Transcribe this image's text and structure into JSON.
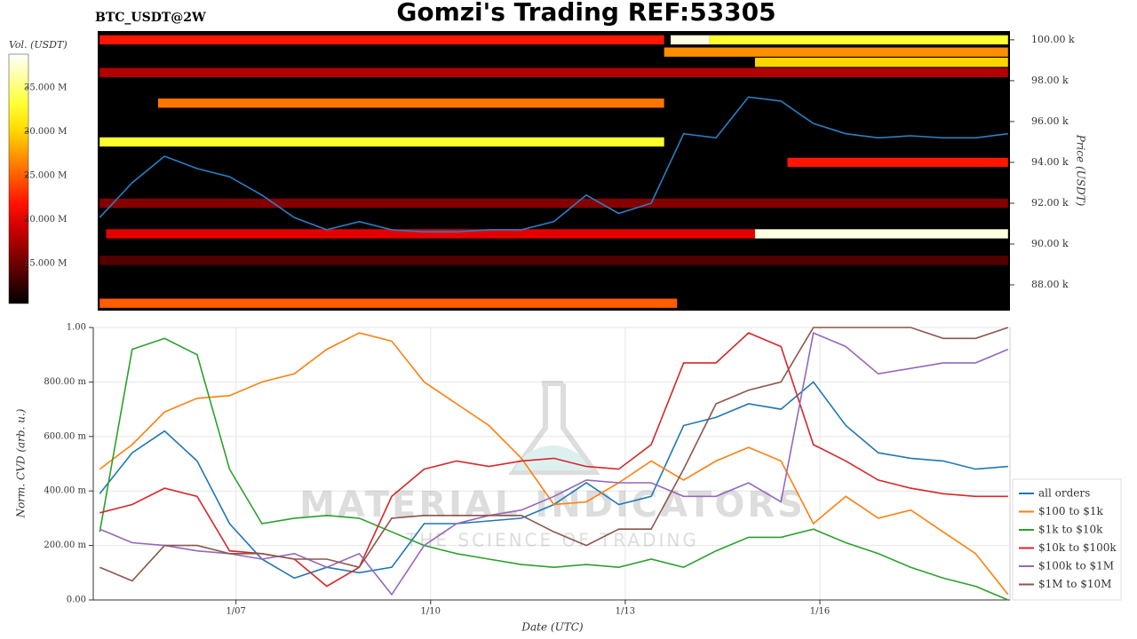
{
  "chart_data": [
    {
      "type": "heatmap",
      "title": "Gomzi's Trading REF:53305",
      "subtitle": "BTC_USDT@2W",
      "y_label": "Price (USDT)",
      "colorbar_label": "Vol. (USDT)",
      "colormap": "hot",
      "xlim": [
        4.87,
        18.93
      ],
      "ylim": [
        86740,
        100430
      ],
      "yticks": [
        {
          "value": 88000,
          "label": "88.00 k"
        },
        {
          "value": 90000,
          "label": "90.00 k"
        },
        {
          "value": 92000,
          "label": "92.00 k"
        },
        {
          "value": 94000,
          "label": "94.00 k"
        },
        {
          "value": 96000,
          "label": "96.00 k"
        },
        {
          "value": 98000,
          "label": "98.00 k"
        },
        {
          "value": 100000,
          "label": "100.00 k"
        }
      ],
      "colorbar_lim": [
        10450000,
        38840000
      ],
      "colorbar_ticks": [
        {
          "value": 15000000,
          "label": "15.000 M"
        },
        {
          "value": 20000000,
          "label": "20.000 M"
        },
        {
          "value": 25000000,
          "label": "25.000 M"
        },
        {
          "value": 30000000,
          "label": "30.000 M"
        },
        {
          "value": 35000000,
          "label": "35.000 M"
        }
      ],
      "bands": [
        {
          "price": 100000,
          "start": 4.9,
          "end": 13.6,
          "volume": 22000000
        },
        {
          "price": 100000,
          "start": 13.7,
          "end": 14.3,
          "volume": 38000000
        },
        {
          "price": 100000,
          "start": 14.3,
          "end": 18.9,
          "volume": 33000000
        },
        {
          "price": 99400,
          "start": 13.6,
          "end": 18.9,
          "volume": 27000000
        },
        {
          "price": 98900,
          "start": 15.0,
          "end": 18.9,
          "volume": 30000000
        },
        {
          "price": 98400,
          "start": 4.9,
          "end": 18.9,
          "volume": 18000000
        },
        {
          "price": 96900,
          "start": 5.8,
          "end": 13.6,
          "volume": 26000000
        },
        {
          "price": 95000,
          "start": 4.9,
          "end": 13.6,
          "volume": 33000000
        },
        {
          "price": 94000,
          "start": 15.5,
          "end": 18.9,
          "volume": 22000000
        },
        {
          "price": 92000,
          "start": 4.9,
          "end": 18.9,
          "volume": 16000000
        },
        {
          "price": 90500,
          "start": 5.0,
          "end": 15.0,
          "volume": 20000000
        },
        {
          "price": 90500,
          "start": 15.0,
          "end": 18.9,
          "volume": 38000000
        },
        {
          "price": 89200,
          "start": 4.9,
          "end": 18.9,
          "volume": 14000000
        },
        {
          "price": 87100,
          "start": 4.9,
          "end": 13.8,
          "volume": 25000000
        }
      ],
      "x": [
        4.9,
        5.4,
        5.9,
        6.4,
        6.9,
        7.4,
        7.9,
        8.4,
        8.9,
        9.4,
        9.9,
        10.4,
        10.9,
        11.4,
        11.9,
        12.4,
        12.9,
        13.4,
        13.9,
        14.4,
        14.9,
        15.4,
        15.9,
        16.4,
        16.9,
        17.4,
        17.9,
        18.4,
        18.9
      ],
      "line": {
        "color": "#2a7fc4",
        "values": [
          91300,
          93000,
          94300,
          93700,
          93300,
          92400,
          91300,
          90700,
          91100,
          90700,
          90600,
          90600,
          90700,
          90700,
          91100,
          92400,
          91500,
          92000,
          95400,
          95200,
          97200,
          97000,
          95900,
          95400,
          95200,
          95300,
          95200,
          95200,
          95400
        ]
      }
    },
    {
      "type": "line",
      "x_label": "Date (UTC)",
      "y_label": "Norm. CVD (arb. u.)",
      "grid": true,
      "legend": "lower right",
      "xlim": [
        4.8,
        18.93
      ],
      "ylim": [
        0,
        1
      ],
      "xticks": [
        {
          "value": 7,
          "label": "1/07"
        },
        {
          "value": 10,
          "label": "1/10"
        },
        {
          "value": 13,
          "label": "1/13"
        },
        {
          "value": 16,
          "label": "1/16"
        }
      ],
      "yticks": [
        {
          "value": 0,
          "label": "0.00"
        },
        {
          "value": 0.2,
          "label": "200.00 m"
        },
        {
          "value": 0.4,
          "label": "400.00 m"
        },
        {
          "value": 0.6,
          "label": "600.00 m"
        },
        {
          "value": 0.8,
          "label": "800.00 m"
        },
        {
          "value": 1,
          "label": "1.00"
        }
      ],
      "x": [
        4.9,
        5.4,
        5.9,
        6.4,
        6.9,
        7.4,
        7.9,
        8.4,
        8.9,
        9.4,
        9.9,
        10.4,
        10.9,
        11.4,
        11.9,
        12.4,
        12.9,
        13.4,
        13.9,
        14.4,
        14.9,
        15.4,
        15.9,
        16.4,
        16.9,
        17.4,
        17.9,
        18.4,
        18.9
      ],
      "series": [
        {
          "name": "all orders",
          "color": "#1f77b4",
          "values": [
            0.39,
            0.54,
            0.62,
            0.51,
            0.28,
            0.15,
            0.08,
            0.12,
            0.1,
            0.12,
            0.28,
            0.28,
            0.29,
            0.3,
            0.35,
            0.43,
            0.35,
            0.38,
            0.64,
            0.67,
            0.72,
            0.7,
            0.8,
            0.64,
            0.54,
            0.52,
            0.51,
            0.48,
            0.49
          ]
        },
        {
          "name": "$100 to $1k",
          "color": "#ff7f0e",
          "values": [
            0.48,
            0.57,
            0.69,
            0.74,
            0.75,
            0.8,
            0.83,
            0.92,
            0.98,
            0.95,
            0.8,
            0.72,
            0.64,
            0.52,
            0.35,
            0.36,
            0.43,
            0.51,
            0.44,
            0.51,
            0.56,
            0.51,
            0.28,
            0.38,
            0.3,
            0.33,
            0.25,
            0.17,
            0.02
          ]
        },
        {
          "name": "$1k to $10k",
          "color": "#2ca02c",
          "values": [
            0.25,
            0.92,
            0.96,
            0.9,
            0.48,
            0.28,
            0.3,
            0.31,
            0.3,
            0.25,
            0.2,
            0.17,
            0.15,
            0.13,
            0.12,
            0.13,
            0.12,
            0.15,
            0.12,
            0.18,
            0.23,
            0.23,
            0.26,
            0.21,
            0.17,
            0.12,
            0.08,
            0.05,
            0.0
          ]
        },
        {
          "name": "$10k to $100k",
          "color": "#d62728",
          "values": [
            0.32,
            0.35,
            0.41,
            0.38,
            0.18,
            0.17,
            0.15,
            0.05,
            0.12,
            0.38,
            0.48,
            0.51,
            0.49,
            0.51,
            0.52,
            0.49,
            0.48,
            0.57,
            0.87,
            0.87,
            0.98,
            0.93,
            0.57,
            0.51,
            0.44,
            0.41,
            0.39,
            0.38,
            0.38
          ]
        },
        {
          "name": "$100k to $1M",
          "color": "#9467bd",
          "values": [
            0.26,
            0.21,
            0.2,
            0.18,
            0.17,
            0.15,
            0.17,
            0.12,
            0.17,
            0.02,
            0.2,
            0.28,
            0.31,
            0.33,
            0.38,
            0.44,
            0.43,
            0.43,
            0.38,
            0.38,
            0.43,
            0.36,
            0.98,
            0.93,
            0.83,
            0.85,
            0.87,
            0.87,
            0.92
          ]
        },
        {
          "name": "$1M to $10M",
          "color": "#8c564b",
          "values": [
            0.12,
            0.07,
            0.2,
            0.2,
            0.17,
            0.17,
            0.15,
            0.15,
            0.12,
            0.3,
            0.31,
            0.31,
            0.31,
            0.31,
            0.25,
            0.2,
            0.26,
            0.26,
            0.48,
            0.72,
            0.77,
            0.8,
            1.0,
            1.0,
            1.0,
            1.0,
            0.96,
            0.96,
            1.0
          ]
        }
      ]
    }
  ],
  "watermark": {
    "title": "MATERIAL INDICATORS",
    "subtitle": "THE SCIENCE OF TRADING"
  }
}
